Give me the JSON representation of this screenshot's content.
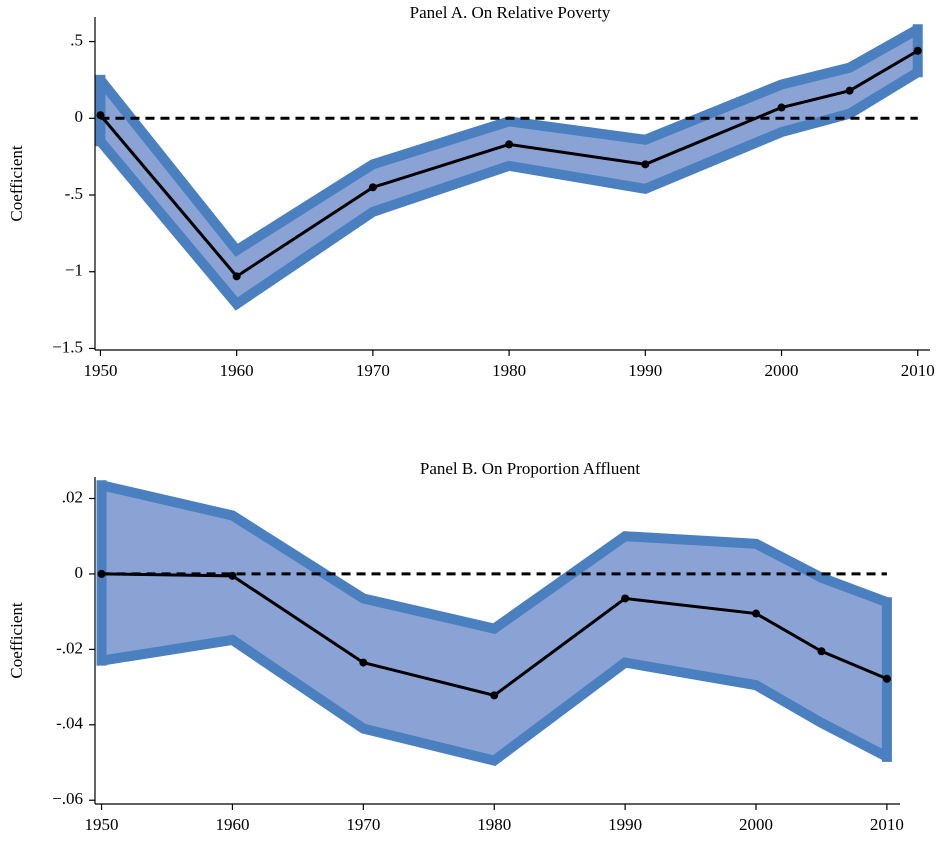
{
  "chart_data": [
    {
      "type": "band-line",
      "title": "Panel A. On Relative Poverty",
      "y_label": "Coefficient",
      "x": [
        1950,
        1960,
        1970,
        1980,
        1990,
        2000,
        2005,
        2010
      ],
      "values": [
        0.02,
        -1.03,
        -0.45,
        -0.17,
        -0.3,
        0.07,
        0.18,
        0.44
      ],
      "upper": [
        0.25,
        -0.86,
        -0.3,
        -0.02,
        -0.14,
        0.22,
        0.33,
        0.58
      ],
      "lower": [
        -0.15,
        -1.21,
        -0.61,
        -0.31,
        -0.46,
        -0.09,
        0.03,
        0.3
      ],
      "color": "#000000",
      "band_color": "#8aa2d4",
      "band_edge_color": "#4a7fc0",
      "reference_line": 0,
      "xlim": [
        1949.6,
        2010.9
      ],
      "xticks": [
        1950,
        1960,
        1970,
        1980,
        1990,
        2000,
        2010
      ],
      "ylim": [
        -1.51,
        0.66
      ],
      "yticks": [
        {
          "value": 0.5,
          "label": ".5"
        },
        0,
        {
          "value": -0.5,
          "label": "-.5"
        },
        {
          "value": -1,
          "label": "−1"
        },
        {
          "value": -1.5,
          "label": "−1.5"
        }
      ],
      "grid": false
    },
    {
      "type": "band-line",
      "title": "Panel B. On Proportion Affluent",
      "y_label": "Coefficient",
      "x": [
        1950,
        1960,
        1970,
        1980,
        1990,
        2000,
        2005,
        2010
      ],
      "values": [
        0,
        -0.0005,
        -0.0235,
        -0.0322,
        -0.0065,
        -0.0105,
        -0.0205,
        -0.0278
      ],
      "upper": [
        0.0235,
        0.0155,
        -0.0065,
        -0.0145,
        0.01,
        0.008,
        -0.001,
        -0.0075
      ],
      "lower": [
        -0.023,
        -0.0175,
        -0.041,
        -0.0495,
        -0.0235,
        -0.0295,
        -0.0395,
        -0.0485
      ],
      "color": "#000000",
      "band_color": "#8aa2d4",
      "band_edge_color": "#4a7fc0",
      "reference_line": 0,
      "xlim": [
        1949.5,
        2011
      ],
      "xticks": [
        1950,
        1960,
        1970,
        1980,
        1990,
        2000,
        2010
      ],
      "ylim": [
        -0.061,
        0.0257
      ],
      "yticks": [
        {
          "value": 0.02,
          "label": ".02"
        },
        0,
        {
          "value": -0.02,
          "label": "-.02"
        },
        {
          "value": -0.04,
          "label": "-.04"
        },
        {
          "value": -0.06,
          "label": "−.06"
        }
      ],
      "grid": false
    }
  ]
}
